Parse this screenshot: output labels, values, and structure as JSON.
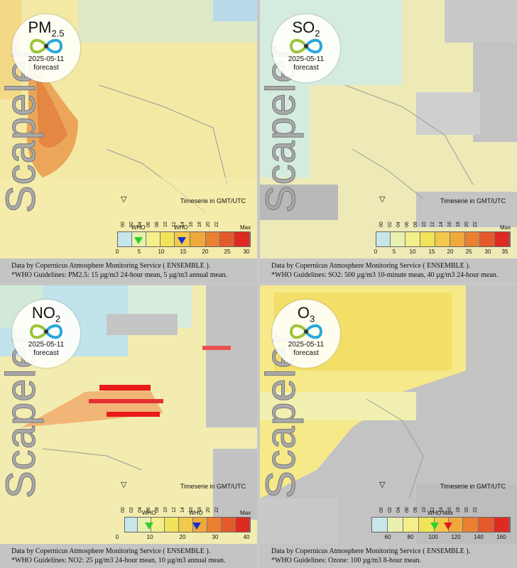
{
  "panels": [
    {
      "pollutant": "PM",
      "pollutant_sub": "2.5",
      "date": "2025-05-11",
      "forecast_label": "forecast",
      "brand": "Scapeler",
      "timeserie_label": "Timeserie in GMT/UTC",
      "hours": [
        "00",
        "02",
        "04",
        "06",
        "08",
        "10",
        "12",
        "14",
        "16",
        "18",
        "20",
        "22"
      ],
      "who_labels": [
        "WHO",
        "WHO"
      ],
      "max_label": "Max",
      "scale_ticks": [
        "0",
        "5",
        "10",
        "15",
        "20",
        "25",
        "30"
      ],
      "footer_line1": "Data by Copernicus Atmosphere Monitoring Service ( ENSEMBLE ).",
      "footer_line2": "*WHO Guidelines: PM2.5: 15 µg/m3 24-hour mean, 5 µg/m3 annual mean."
    },
    {
      "pollutant": "SO",
      "pollutant_sub": "2",
      "date": "2025-05-11",
      "forecast_label": "forecast",
      "brand": "Scapeler",
      "timeserie_label": "Timeserie in GMT/UTC",
      "hours": [
        "00",
        "02",
        "04",
        "06",
        "08",
        "10",
        "12",
        "14",
        "16",
        "18",
        "20",
        "22"
      ],
      "who_labels": [],
      "max_label": "Max",
      "scale_ticks": [
        "0",
        "5",
        "10",
        "15",
        "20",
        "25",
        "30",
        "35"
      ],
      "footer_line1": "Data by Copernicus Atmosphere Monitoring Service ( ENSEMBLE ).",
      "footer_line2": "*WHO Guidelines: SO2: 500 µg/m3 10-minute mean, 40 µg/m3 24-hour mean."
    },
    {
      "pollutant": "NO",
      "pollutant_sub": "2",
      "date": "2025-05-11",
      "forecast_label": "forecast",
      "brand": "Scapeler",
      "timeserie_label": "Timeserie in GMT/UTC",
      "hours": [
        "00",
        "02",
        "04",
        "06",
        "08",
        "10",
        "12",
        "14",
        "16",
        "18",
        "20",
        "22"
      ],
      "who_labels": [
        "WHO",
        "WHO"
      ],
      "max_label": "Max",
      "scale_ticks": [
        "0",
        "10",
        "20",
        "30",
        "40"
      ],
      "footer_line1": "Data by Copernicus Atmosphere Monitoring Service ( ENSEMBLE ).",
      "footer_line2": "*WHO Guidelines: NO2: 25 µg/m3 24-hour mean, 10 µg/m3 annual mean."
    },
    {
      "pollutant": "O",
      "pollutant_sub": "3",
      "date": "2025-05-11",
      "forecast_label": "forecast",
      "brand": "Scapeler",
      "timeserie_label": "Timeserie in GMT/UTC",
      "hours": [
        "00",
        "02",
        "04",
        "06",
        "08",
        "10",
        "12",
        "14",
        "16",
        "18",
        "20",
        "22"
      ],
      "who_labels": [
        "WHO"
      ],
      "max_label": "Max",
      "scale_ticks": [
        "60",
        "80",
        "100",
        "120",
        "140",
        "160"
      ],
      "footer_line1": "Data by Copernicus Atmosphere Monitoring Service ( ENSEMBLE ).",
      "footer_line2": "*WHO Guidelines: Ozone: 100 µg/m3 8-hour mean."
    }
  ],
  "colors": {
    "sea": "#bfe3ef",
    "land_nodata": "#b9b9b9",
    "scale": [
      "#c8e6ea",
      "#e8f0b0",
      "#f3ef8a",
      "#f1e35a",
      "#f2c94a",
      "#efa83c",
      "#ea8032",
      "#e45a2a",
      "#df2a22"
    ]
  }
}
